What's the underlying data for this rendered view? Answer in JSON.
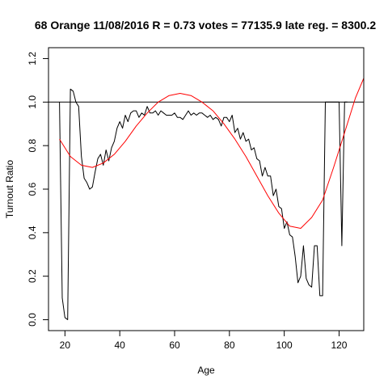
{
  "chart_data": {
    "type": "line",
    "title": "68 Orange 11/08/2016 R = 0.73 votes = 77135.9 late reg. = 8300.2",
    "xlabel": "Age",
    "ylabel": "Turnout Ratio",
    "xlim": [
      14,
      129
    ],
    "ylim": [
      -0.05,
      1.25
    ],
    "xticks": [
      20,
      40,
      60,
      80,
      100,
      120
    ],
    "yticks": [
      0.0,
      0.2,
      0.4,
      0.6,
      0.8,
      1.0,
      1.2
    ],
    "reference_line": {
      "y": 1.0,
      "color": "#000000"
    },
    "grid": false,
    "series": [
      {
        "style": "line",
        "color": "#000000",
        "x": [
          18,
          19,
          20,
          21,
          22,
          23,
          24,
          25,
          26,
          27,
          28,
          29,
          30,
          31,
          32,
          33,
          34,
          35,
          36,
          37,
          38,
          39,
          40,
          41,
          42,
          43,
          44,
          45,
          46,
          47,
          48,
          49,
          50,
          51,
          52,
          53,
          54,
          55,
          56,
          57,
          58,
          59,
          60,
          61,
          62,
          63,
          64,
          65,
          66,
          67,
          68,
          69,
          70,
          71,
          72,
          73,
          74,
          75,
          76,
          77,
          78,
          79,
          80,
          81,
          82,
          83,
          84,
          85,
          86,
          87,
          88,
          89,
          90,
          91,
          92,
          93,
          94,
          95,
          96,
          97,
          98,
          99,
          100,
          101,
          102,
          103,
          104,
          105,
          106,
          107,
          108,
          109,
          110,
          111,
          112,
          113,
          114,
          115,
          116,
          117,
          118,
          119,
          120,
          121,
          122,
          123
        ],
        "y": [
          1.0,
          0.1,
          0.01,
          0.0,
          1.06,
          1.05,
          1.0,
          0.98,
          0.75,
          0.65,
          0.63,
          0.6,
          0.61,
          0.68,
          0.74,
          0.76,
          0.71,
          0.78,
          0.73,
          0.79,
          0.82,
          0.88,
          0.91,
          0.88,
          0.94,
          0.91,
          0.95,
          0.96,
          0.96,
          0.93,
          0.95,
          0.94,
          0.98,
          0.95,
          0.95,
          0.96,
          0.94,
          0.96,
          0.95,
          0.94,
          0.94,
          0.94,
          0.95,
          0.93,
          0.93,
          0.92,
          0.94,
          0.96,
          0.94,
          0.95,
          0.94,
          0.95,
          0.95,
          0.94,
          0.93,
          0.94,
          0.92,
          0.93,
          0.92,
          0.89,
          0.93,
          0.93,
          0.91,
          0.94,
          0.86,
          0.88,
          0.83,
          0.86,
          0.82,
          0.83,
          0.78,
          0.79,
          0.74,
          0.73,
          0.66,
          0.7,
          0.66,
          0.66,
          0.57,
          0.6,
          0.52,
          0.51,
          0.42,
          0.45,
          0.39,
          0.38,
          0.29,
          0.17,
          0.2,
          0.34,
          0.19,
          0.16,
          0.15,
          0.34,
          0.34,
          0.11,
          0.11,
          1.0,
          1.0,
          1.0,
          1.0,
          1.0,
          1.0,
          0.34,
          1.0,
          1.0
        ]
      },
      {
        "style": "fit-curve",
        "color": "#ff0000",
        "x": [
          18,
          22,
          26,
          30,
          34,
          38,
          42,
          46,
          50,
          54,
          58,
          62,
          66,
          70,
          74,
          78,
          82,
          86,
          90,
          94,
          98,
          102,
          106,
          110,
          114,
          118,
          122,
          126,
          129
        ],
        "y": [
          0.83,
          0.75,
          0.71,
          0.7,
          0.72,
          0.76,
          0.82,
          0.89,
          0.95,
          1.0,
          1.03,
          1.04,
          1.03,
          1.0,
          0.96,
          0.9,
          0.83,
          0.75,
          0.66,
          0.57,
          0.49,
          0.43,
          0.42,
          0.47,
          0.55,
          0.7,
          0.86,
          1.02,
          1.11
        ]
      }
    ]
  }
}
